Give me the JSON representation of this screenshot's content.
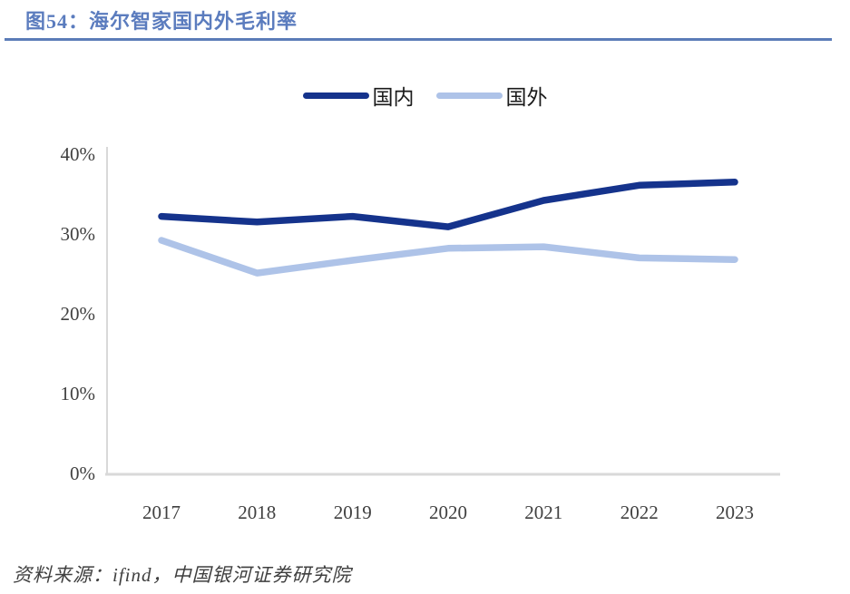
{
  "header": {
    "title": "图54：海尔智家国内外毛利率"
  },
  "legend": {
    "items": [
      {
        "label": "国内",
        "color": "#15338C"
      },
      {
        "label": "国外",
        "color": "#AEC3E8"
      }
    ]
  },
  "chart_data": {
    "type": "line",
    "title": "海尔智家国内外毛利率",
    "categories": [
      "2017",
      "2018",
      "2019",
      "2020",
      "2021",
      "2022",
      "2023"
    ],
    "series": [
      {
        "name": "国内",
        "color": "#15338C",
        "values": [
          32.2,
          31.5,
          32.2,
          30.9,
          34.2,
          36.1,
          36.5
        ]
      },
      {
        "name": "国外",
        "color": "#AEC3E8",
        "values": [
          29.2,
          25.1,
          26.7,
          28.2,
          28.4,
          27.0,
          26.8
        ]
      }
    ],
    "xlabel": "",
    "ylabel": "",
    "ylim": [
      0,
      40
    ],
    "yticks": [
      "0%",
      "10%",
      "20%",
      "30%",
      "40%"
    ],
    "grid": false,
    "legend_position": "top-center"
  },
  "footer": {
    "source": "资料来源：ifind，中国银河证券研究院"
  },
  "colors": {
    "title_accent": "#5B7CBE",
    "divider": "#5B7CB8",
    "axis_line": "#D9D9D9",
    "tick_text": "#404040",
    "series_domestic": "#15338C",
    "series_overseas": "#AEC3E8"
  }
}
